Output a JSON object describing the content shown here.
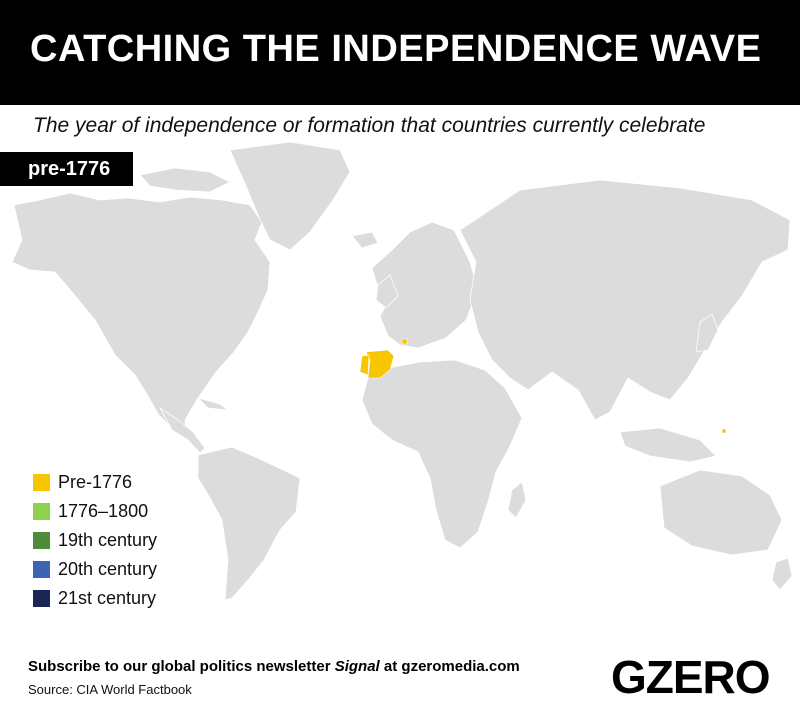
{
  "header": {
    "title": "CATCHING THE INDEPENDENCE WAVE",
    "subtitle": "The year of independence or formation that countries currently celebrate"
  },
  "era_badge": "pre-1776",
  "colors": {
    "land": "#dcdcdc",
    "border": "#ffffff",
    "pre_1776": "#f7c600",
    "c1776_1800": "#8fd14f",
    "c19th": "#4e8c3c",
    "c20th": "#3b64b4",
    "c21st": "#1c2456"
  },
  "highlighted_regions": [
    {
      "name": "Spain",
      "category": "Pre-1776"
    },
    {
      "name": "Portugal",
      "category": "Pre-1776"
    },
    {
      "name": "San Marino",
      "category": "Pre-1776"
    },
    {
      "name": "Guam",
      "category": "Pre-1776"
    }
  ],
  "legend": [
    {
      "label": "Pre-1776",
      "color": "#f7c600"
    },
    {
      "label": "1776–1800",
      "color": "#8fd14f"
    },
    {
      "label": "19th century",
      "color": "#4e8c3c"
    },
    {
      "label": "20th century",
      "color": "#3b64b4"
    },
    {
      "label": "21st century",
      "color": "#1c2456"
    }
  ],
  "footer": {
    "newsletter_prefix": "Subscribe to our global politics newsletter ",
    "newsletter_name": "Signal",
    "newsletter_suffix": " at gzeromedia.com",
    "source": "Source: CIA World Factbook"
  },
  "logo": "GZERO"
}
